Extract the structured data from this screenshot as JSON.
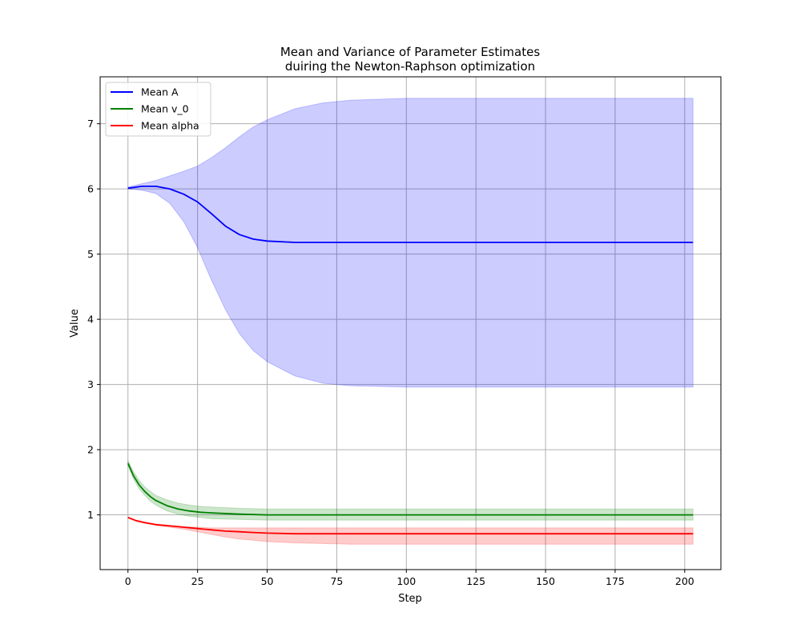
{
  "chart_data": {
    "type": "line",
    "title": "Mean and Variance of Parameter Estimates",
    "subtitle": "duiring the Newton-Raphson optimization",
    "xlabel": "Step",
    "ylabel": "Value",
    "xlim": [
      -10,
      213
    ],
    "ylim": [
      0.16,
      7.72
    ],
    "xticks": [
      0,
      25,
      50,
      75,
      100,
      125,
      150,
      175,
      200
    ],
    "yticks": [
      1,
      2,
      3,
      4,
      5,
      6,
      7
    ],
    "grid": true,
    "legend_position": "top-left",
    "series": [
      {
        "name": "Mean A",
        "color": "#0000ff",
        "fill_color": "#0000ff",
        "x": [
          0,
          5,
          10,
          15,
          20,
          25,
          30,
          35,
          40,
          45,
          50,
          60,
          70,
          80,
          100,
          125,
          150,
          175,
          203
        ],
        "mean": [
          6.01,
          6.04,
          6.04,
          6.0,
          5.92,
          5.8,
          5.62,
          5.43,
          5.3,
          5.23,
          5.2,
          5.18,
          5.18,
          5.18,
          5.18,
          5.18,
          5.18,
          5.18,
          5.18
        ],
        "upper": [
          6.03,
          6.08,
          6.13,
          6.2,
          6.27,
          6.35,
          6.48,
          6.63,
          6.8,
          6.95,
          7.06,
          7.23,
          7.32,
          7.36,
          7.39,
          7.39,
          7.39,
          7.39,
          7.39
        ],
        "lower": [
          6.0,
          5.98,
          5.93,
          5.78,
          5.5,
          5.1,
          4.6,
          4.15,
          3.78,
          3.52,
          3.35,
          3.13,
          3.02,
          2.98,
          2.96,
          2.96,
          2.96,
          2.96,
          2.96
        ]
      },
      {
        "name": "Mean v_0",
        "color": "#008000",
        "fill_color": "#008000",
        "x": [
          0,
          2,
          4,
          6,
          8,
          10,
          14,
          18,
          22,
          26,
          30,
          40,
          50,
          60,
          80,
          100,
          150,
          203
        ],
        "mean": [
          1.79,
          1.6,
          1.46,
          1.36,
          1.28,
          1.22,
          1.14,
          1.09,
          1.06,
          1.04,
          1.03,
          1.01,
          1.0,
          1.0,
          1.0,
          1.0,
          1.0,
          1.0
        ],
        "upper": [
          1.83,
          1.66,
          1.53,
          1.43,
          1.36,
          1.3,
          1.23,
          1.18,
          1.15,
          1.13,
          1.12,
          1.1,
          1.09,
          1.09,
          1.09,
          1.09,
          1.09,
          1.09
        ],
        "lower": [
          1.76,
          1.55,
          1.4,
          1.3,
          1.21,
          1.15,
          1.06,
          1.01,
          0.98,
          0.96,
          0.94,
          0.93,
          0.92,
          0.92,
          0.92,
          0.92,
          0.92,
          0.92
        ]
      },
      {
        "name": "Mean alpha",
        "color": "#ff0000",
        "fill_color": "#ff0000",
        "x": [
          0,
          3,
          6,
          10,
          15,
          20,
          25,
          30,
          35,
          40,
          45,
          50,
          60,
          70,
          80,
          100,
          150,
          203
        ],
        "mean": [
          0.96,
          0.91,
          0.88,
          0.85,
          0.83,
          0.81,
          0.79,
          0.77,
          0.75,
          0.74,
          0.73,
          0.72,
          0.71,
          0.71,
          0.71,
          0.71,
          0.71,
          0.71
        ],
        "upper": [
          0.96,
          0.92,
          0.89,
          0.86,
          0.84,
          0.82,
          0.81,
          0.8,
          0.8,
          0.8,
          0.8,
          0.8,
          0.8,
          0.8,
          0.8,
          0.8,
          0.8,
          0.8
        ],
        "lower": [
          0.95,
          0.9,
          0.87,
          0.84,
          0.81,
          0.78,
          0.74,
          0.7,
          0.66,
          0.63,
          0.61,
          0.59,
          0.57,
          0.56,
          0.55,
          0.55,
          0.55,
          0.55
        ]
      }
    ]
  }
}
